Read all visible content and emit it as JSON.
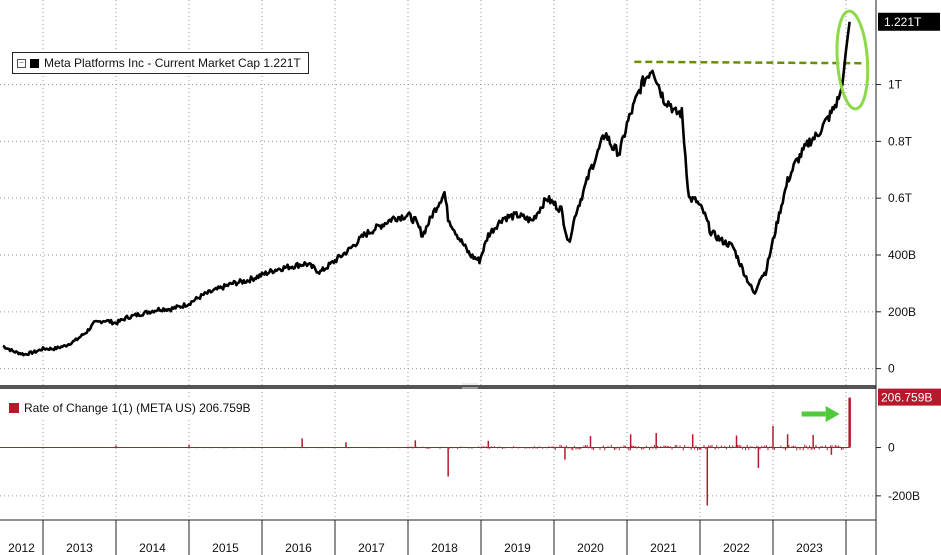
{
  "chart_data": [
    {
      "type": "line",
      "legend": "Meta Platforms Inc - Current Market Cap 1.221T",
      "legend_placement": "top-left",
      "last_value_label": "1.221T",
      "ylim": [
        -0.04,
        1.28
      ],
      "yticks": [
        {
          "value": 0,
          "label": "0"
        },
        {
          "value": 0.2,
          "label": "200B"
        },
        {
          "value": 0.4,
          "label": "400B"
        },
        {
          "value": 0.6,
          "label": "0.6T"
        },
        {
          "value": 0.8,
          "label": "0.8T"
        },
        {
          "value": 1.0,
          "label": "1T"
        }
      ],
      "grid": true,
      "color": "#000000",
      "reference_line": {
        "value": 1.08,
        "from": 2021.1,
        "to": 2024.05,
        "color": "#6b8e00",
        "style": "dashed"
      },
      "highlight": {
        "shape": "ellipse",
        "color": "#8ed94a",
        "around_x": 2023.95
      },
      "series": [
        {
          "name": "Current Market Cap",
          "x": [
            2012.45,
            2012.6,
            2012.75,
            2012.9,
            2013.0,
            2013.15,
            2013.3,
            2013.45,
            2013.6,
            2013.7,
            2013.85,
            2014.0,
            2014.15,
            2014.3,
            2014.45,
            2014.6,
            2014.75,
            2014.9,
            2015.0,
            2015.2,
            2015.4,
            2015.6,
            2015.8,
            2016.0,
            2016.2,
            2016.4,
            2016.6,
            2016.8,
            2016.9,
            2017.0,
            2017.2,
            2017.4,
            2017.6,
            2017.8,
            2018.0,
            2018.1,
            2018.2,
            2018.35,
            2018.5,
            2018.55,
            2018.7,
            2018.85,
            2018.98,
            2019.1,
            2019.3,
            2019.5,
            2019.7,
            2019.9,
            2020.1,
            2020.2,
            2020.3,
            2020.4,
            2020.5,
            2020.6,
            2020.7,
            2020.8,
            2020.9,
            2021.0,
            2021.1,
            2021.2,
            2021.35,
            2021.5,
            2021.6,
            2021.65,
            2021.75,
            2021.85,
            2021.95,
            2022.05,
            2022.15,
            2022.3,
            2022.45,
            2022.6,
            2022.75,
            2022.82,
            2022.9,
            2023.0,
            2023.1,
            2023.2,
            2023.3,
            2023.4,
            2023.5,
            2023.6,
            2023.7,
            2023.8,
            2023.9,
            2023.95,
            2024.0,
            2024.05
          ],
          "y": [
            0.08,
            0.06,
            0.05,
            0.06,
            0.07,
            0.07,
            0.08,
            0.1,
            0.13,
            0.16,
            0.17,
            0.16,
            0.18,
            0.19,
            0.2,
            0.21,
            0.21,
            0.22,
            0.23,
            0.26,
            0.28,
            0.3,
            0.31,
            0.33,
            0.35,
            0.36,
            0.37,
            0.34,
            0.36,
            0.38,
            0.42,
            0.47,
            0.5,
            0.53,
            0.54,
            0.52,
            0.47,
            0.55,
            0.62,
            0.53,
            0.46,
            0.4,
            0.38,
            0.47,
            0.53,
            0.54,
            0.52,
            0.6,
            0.56,
            0.44,
            0.55,
            0.62,
            0.7,
            0.76,
            0.83,
            0.78,
            0.76,
            0.86,
            0.93,
            1.0,
            1.06,
            0.95,
            0.93,
            0.9,
            0.9,
            0.6,
            0.59,
            0.55,
            0.48,
            0.45,
            0.43,
            0.34,
            0.26,
            0.32,
            0.34,
            0.45,
            0.56,
            0.66,
            0.72,
            0.76,
            0.8,
            0.82,
            0.86,
            0.9,
            0.95,
            1.0,
            1.12,
            1.221
          ]
        }
      ]
    },
    {
      "type": "bar",
      "legend": "Rate of Change 1(1) (META US) 206.759B",
      "legend_placement": "top-left",
      "last_value_label": "206.759B",
      "ylim": [
        -300,
        230
      ],
      "yticks": [
        {
          "value": 0,
          "label": "0"
        },
        {
          "value": -200,
          "label": "-200B"
        }
      ],
      "grid": true,
      "color": "#b5192b",
      "annotation": {
        "shape": "arrow",
        "color": "#4fca3a",
        "pointing_at_x": 2024.05
      },
      "spikes": [
        {
          "x": 2014.0,
          "value": 8
        },
        {
          "x": 2015.0,
          "value": 10
        },
        {
          "x": 2016.55,
          "value": 38
        },
        {
          "x": 2017.15,
          "value": 22
        },
        {
          "x": 2018.1,
          "value": 30
        },
        {
          "x": 2018.55,
          "value": -120
        },
        {
          "x": 2019.1,
          "value": 28
        },
        {
          "x": 2020.15,
          "value": -50
        },
        {
          "x": 2020.5,
          "value": 48
        },
        {
          "x": 2021.05,
          "value": 55
        },
        {
          "x": 2021.4,
          "value": 60
        },
        {
          "x": 2021.9,
          "value": 55
        },
        {
          "x": 2022.1,
          "value": -240
        },
        {
          "x": 2022.5,
          "value": 50
        },
        {
          "x": 2022.8,
          "value": -85
        },
        {
          "x": 2023.0,
          "value": 90
        },
        {
          "x": 2023.2,
          "value": 55
        },
        {
          "x": 2023.55,
          "value": 52
        },
        {
          "x": 2023.8,
          "value": -30
        },
        {
          "x": 2024.05,
          "value": 206.759
        }
      ]
    }
  ],
  "x_axis": {
    "labels": [
      "2012",
      "2013",
      "2014",
      "2015",
      "2016",
      "2017",
      "2018",
      "2019",
      "2020",
      "2021",
      "2022",
      "2023"
    ]
  },
  "colors": {
    "price_line": "#000000",
    "ref_line": "#6b8e00",
    "ellipse": "#8ed94a",
    "roc": "#b5192b",
    "arrow": "#4fca3a",
    "tag_bg": "#000000",
    "roc_tag_bg": "#b5192b"
  }
}
